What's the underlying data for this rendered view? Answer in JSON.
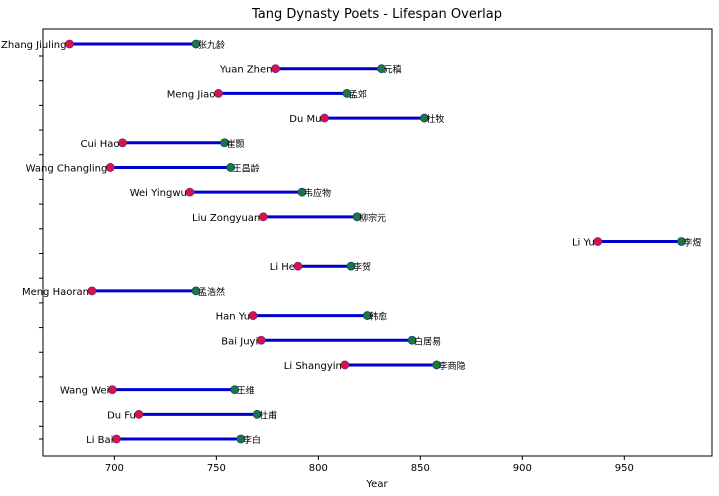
{
  "chart_data": {
    "type": "dumbbell",
    "title": "Tang Dynasty Poets - Lifespan Overlap",
    "xlabel": "Year",
    "ylabel": "",
    "xlim": [
      665,
      993
    ],
    "xticks": [
      700,
      750,
      800,
      850,
      900,
      950
    ],
    "grid": false,
    "colors": {
      "line": "#0000cc",
      "start": "#dd1144",
      "end": "#1a7a3c"
    },
    "poets": [
      {
        "name": "Zhang Jiuling",
        "cn": "张九龄",
        "birth": 678,
        "death": 740
      },
      {
        "name": "Yuan Zhen",
        "cn": "元稹",
        "birth": 779,
        "death": 831
      },
      {
        "name": "Meng Jiao",
        "cn": "孟郊",
        "birth": 751,
        "death": 814
      },
      {
        "name": "Du Mu",
        "cn": "杜牧",
        "birth": 803,
        "death": 852
      },
      {
        "name": "Cui Hao",
        "cn": "崔颢",
        "birth": 704,
        "death": 754
      },
      {
        "name": "Wang Changling",
        "cn": "王昌龄",
        "birth": 698,
        "death": 757
      },
      {
        "name": "Wei Yingwu",
        "cn": "韦应物",
        "birth": 737,
        "death": 792
      },
      {
        "name": "Liu Zongyuan",
        "cn": "柳宗元",
        "birth": 773,
        "death": 819
      },
      {
        "name": "Li Yu",
        "cn": "李煜",
        "birth": 937,
        "death": 978
      },
      {
        "name": "Li He",
        "cn": "李贺",
        "birth": 790,
        "death": 816
      },
      {
        "name": "Meng Haoran",
        "cn": "孟浩然",
        "birth": 689,
        "death": 740
      },
      {
        "name": "Han Yu",
        "cn": "韩愈",
        "birth": 768,
        "death": 824
      },
      {
        "name": "Bai Juyi",
        "cn": "白居易",
        "birth": 772,
        "death": 846
      },
      {
        "name": "Li Shangyin",
        "cn": "李商隐",
        "birth": 813,
        "death": 858
      },
      {
        "name": "Wang Wei",
        "cn": "王维",
        "birth": 699,
        "death": 759
      },
      {
        "name": "Du Fu",
        "cn": "杜甫",
        "birth": 712,
        "death": 770
      },
      {
        "name": "Li Bai",
        "cn": "李白",
        "birth": 701,
        "death": 762
      }
    ]
  }
}
